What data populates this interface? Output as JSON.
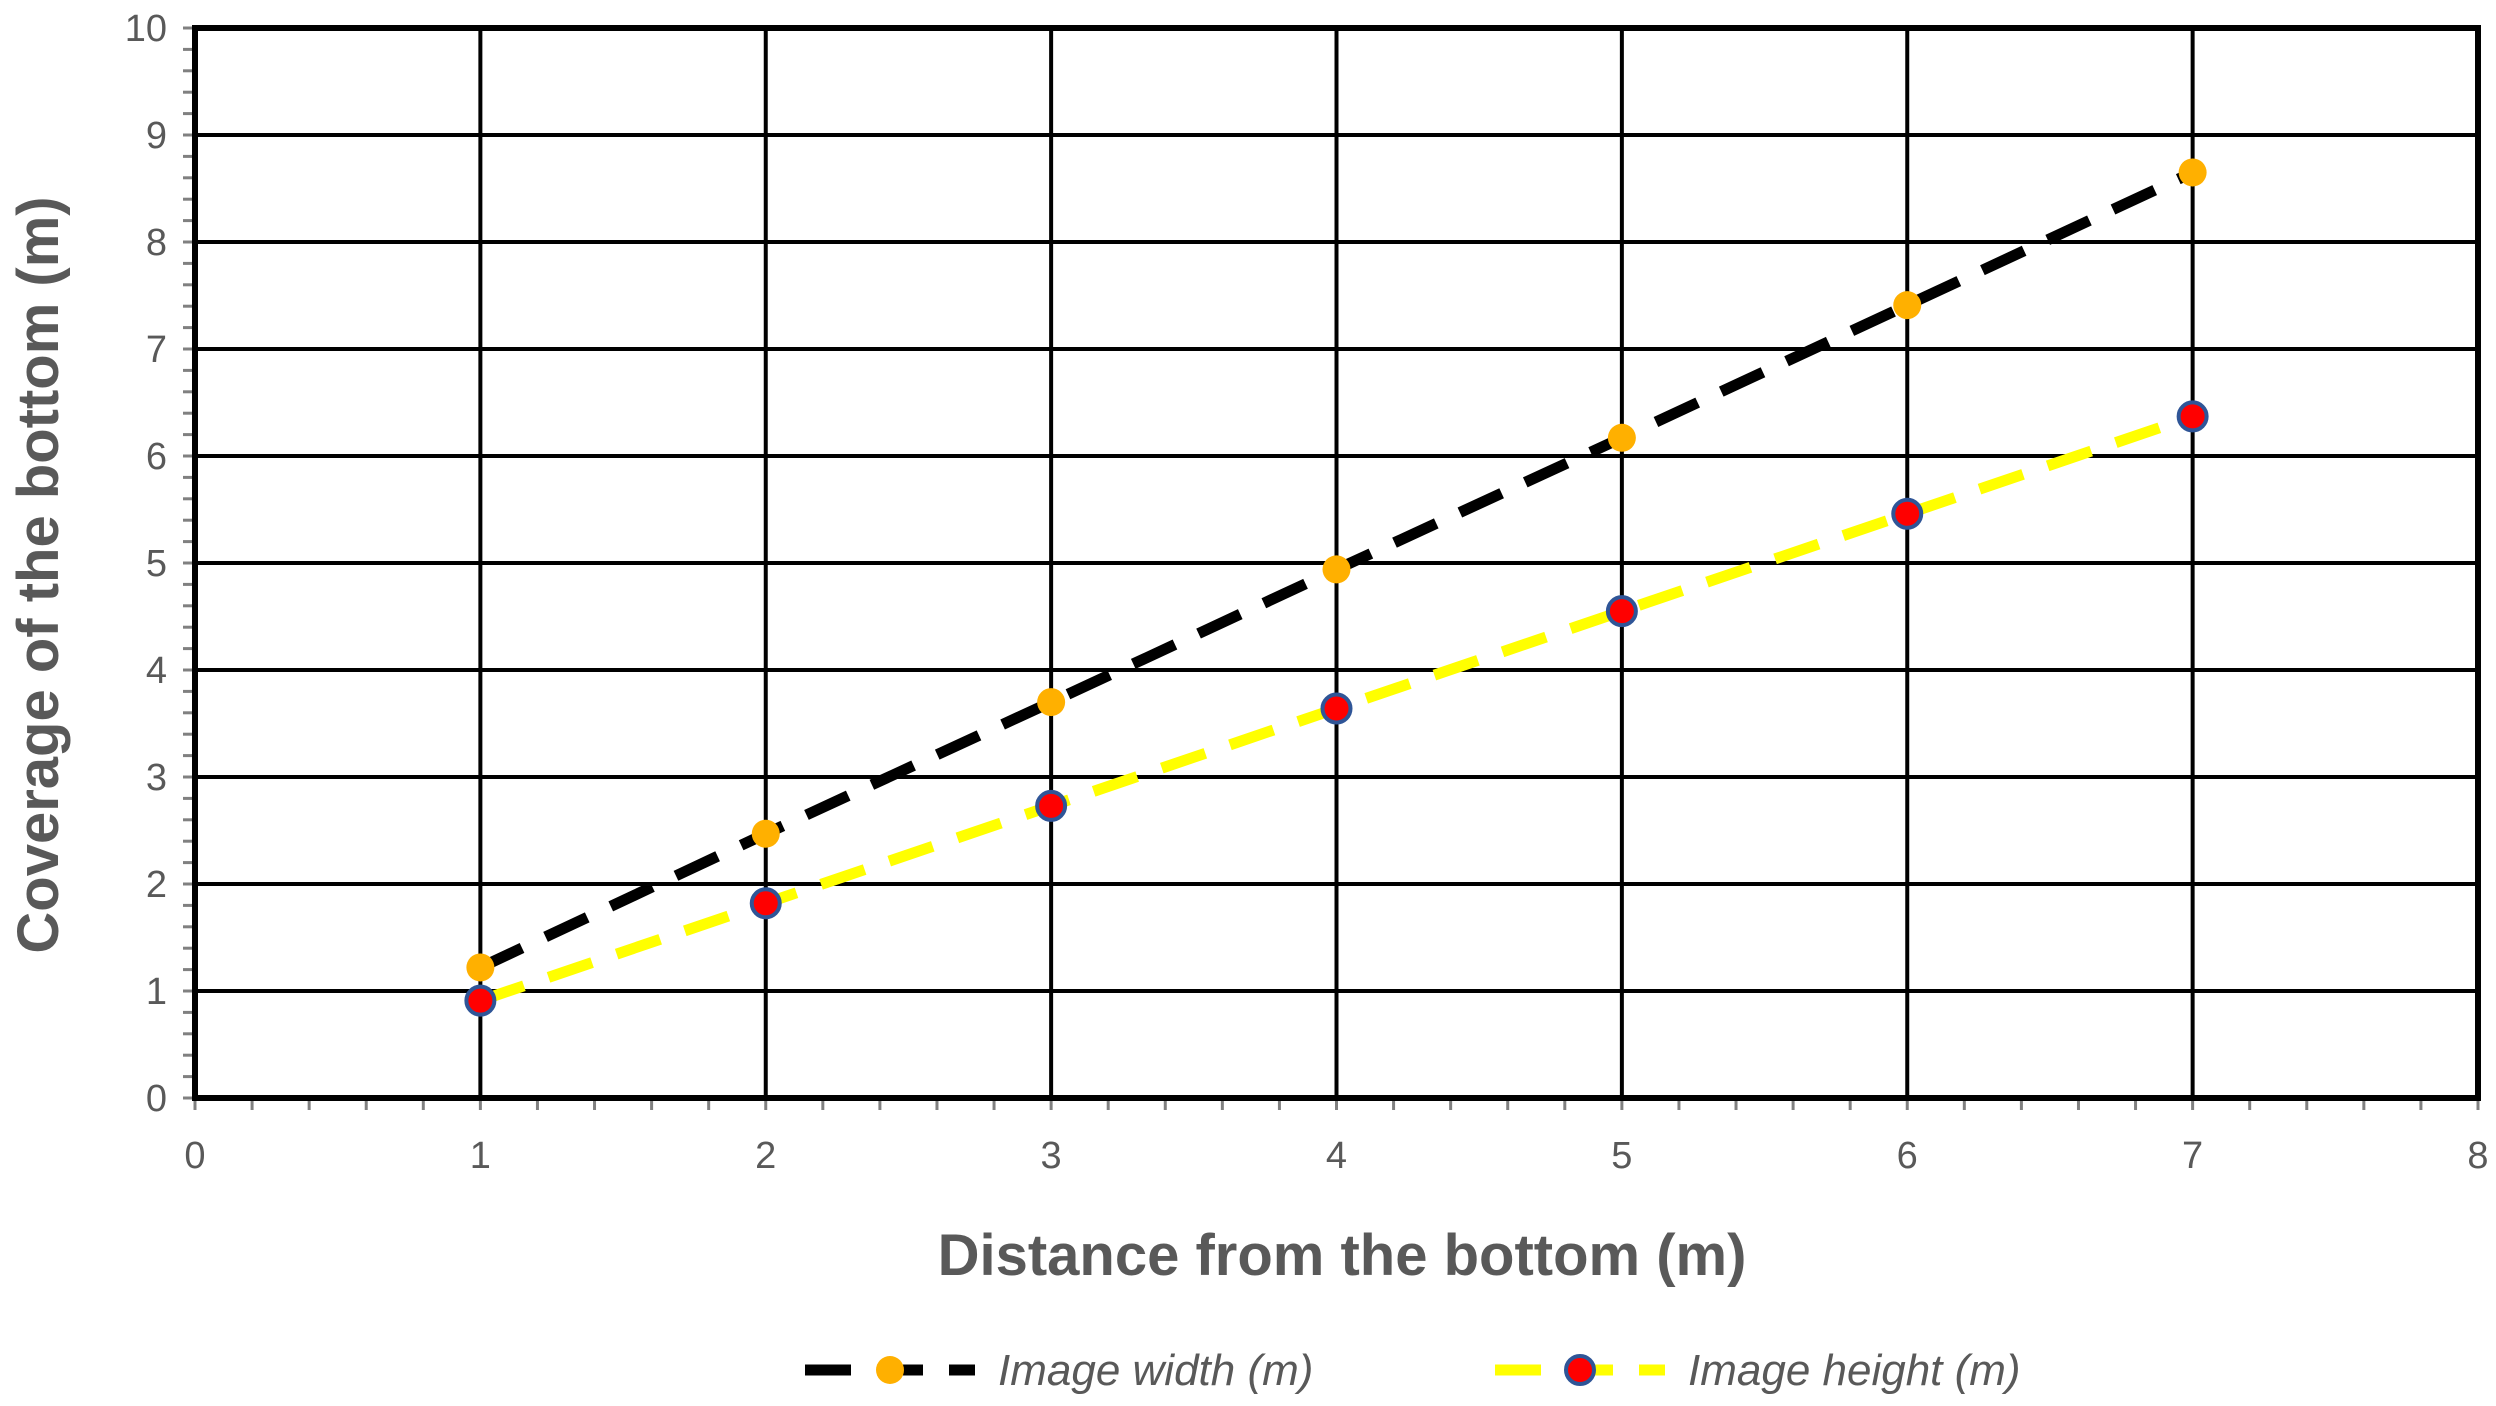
{
  "chart_data": {
    "type": "line",
    "xlabel": "Distance from the bottom (m)",
    "ylabel": "Coverage of the bottom (m)",
    "xlim": [
      0,
      8
    ],
    "ylim": [
      0,
      10
    ],
    "x_ticks": [
      "0",
      "1",
      "2",
      "3",
      "4",
      "5",
      "6",
      "7",
      "8"
    ],
    "y_ticks": [
      "0",
      "1",
      "2",
      "3",
      "4",
      "5",
      "6",
      "7",
      "8",
      "9",
      "10"
    ],
    "grid": true,
    "legend_position": "bottom",
    "series": [
      {
        "name": "Image width (m)",
        "line_color": "#000000",
        "marker_color": "#FFB000",
        "line_style": "dashed",
        "x": [
          1,
          2,
          3,
          4,
          5,
          6,
          7
        ],
        "y": [
          1.22,
          2.47,
          3.7,
          4.94,
          6.17,
          7.41,
          8.65
        ]
      },
      {
        "name": "Image height (m)",
        "line_color": "#FFFF00",
        "marker_color": "#FF0000",
        "marker_edge_color": "#2F5597",
        "line_style": "dashed",
        "x": [
          1,
          2,
          3,
          4,
          5,
          6,
          7
        ],
        "y": [
          0.91,
          1.82,
          2.73,
          3.64,
          4.55,
          5.46,
          6.37
        ]
      }
    ]
  }
}
